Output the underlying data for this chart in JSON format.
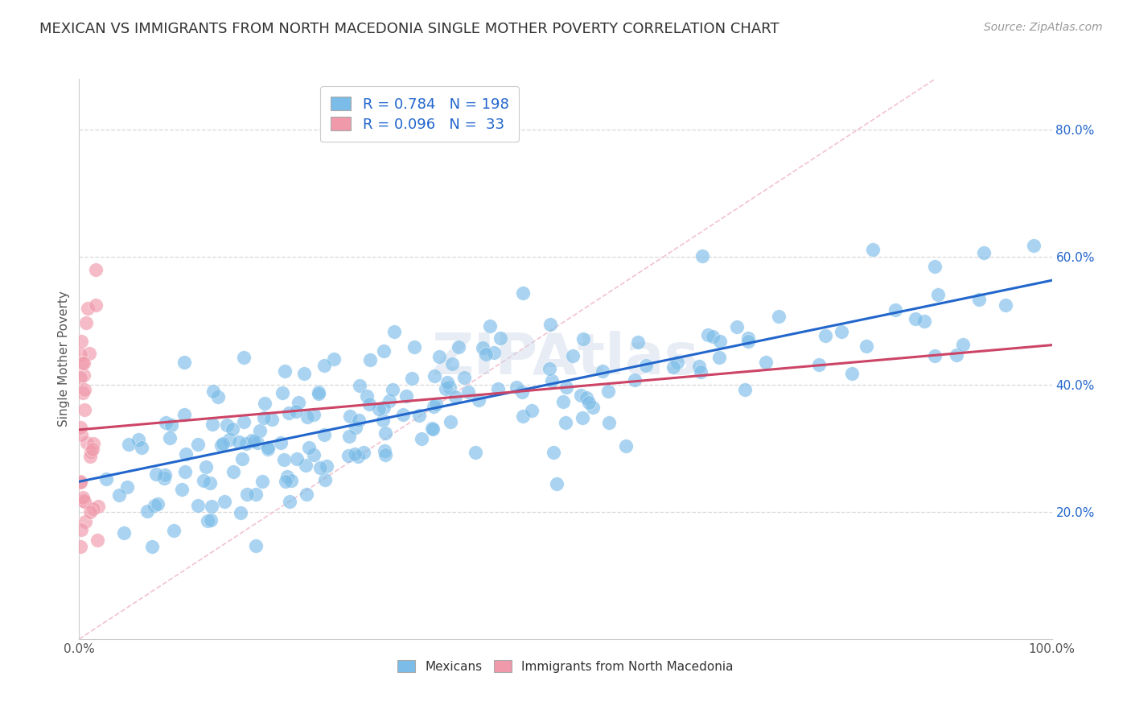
{
  "title": "MEXICAN VS IMMIGRANTS FROM NORTH MACEDONIA SINGLE MOTHER POVERTY CORRELATION CHART",
  "source": "Source: ZipAtlas.com",
  "ylabel": "Single Mother Poverty",
  "watermark": "ZIPAtlas",
  "legend_blue_r": "R = 0.784",
  "legend_blue_n": "N = 198",
  "legend_pink_r": "R = 0.096",
  "legend_pink_n": "N =  33",
  "blue_color": "#7bbce8",
  "pink_color": "#f099aa",
  "blue_line_color": "#2266cc",
  "pink_line_color": "#cc4466",
  "diag_line_color": "#f0b8c8",
  "xlim": [
    0.0,
    1.0
  ],
  "ylim": [
    0.0,
    0.88
  ],
  "xticks": [
    0.0,
    1.0
  ],
  "yticks": [
    0.2,
    0.4,
    0.6,
    0.8
  ],
  "xtick_labels": [
    "0.0%",
    "100.0%"
  ],
  "ytick_labels": [
    "20.0%",
    "40.0%",
    "60.0%",
    "80.0%"
  ],
  "blue_seed": 42,
  "pink_seed": 7,
  "title_fontsize": 13,
  "source_fontsize": 10,
  "watermark_fontsize": 52,
  "legend_fontsize": 13,
  "ylabel_fontsize": 11,
  "tick_fontsize": 11
}
